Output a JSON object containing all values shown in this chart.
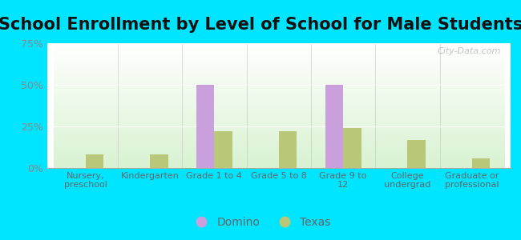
{
  "title": "School Enrollment by Level of School for Male Students",
  "categories": [
    "Nursery,\npreschool",
    "Kindergarten",
    "Grade 1 to 4",
    "Grade 5 to 8",
    "Grade 9 to\n12",
    "College\nundergrad",
    "Graduate or\nprofessional"
  ],
  "domino_values": [
    0,
    0,
    50,
    0,
    50,
    0,
    0
  ],
  "texas_values": [
    8,
    8,
    22,
    22,
    24,
    17,
    6
  ],
  "domino_color": "#c9a0dc",
  "texas_color": "#b8c878",
  "ylim": [
    0,
    75
  ],
  "yticks": [
    0,
    25,
    50,
    75
  ],
  "ytick_labels": [
    "0%",
    "25%",
    "50%",
    "75%"
  ],
  "outer_background": "#00e5ff",
  "title_fontsize": 15,
  "bar_width": 0.28,
  "legend_labels": [
    "Domino",
    "Texas"
  ],
  "watermark": "City-Data.com"
}
